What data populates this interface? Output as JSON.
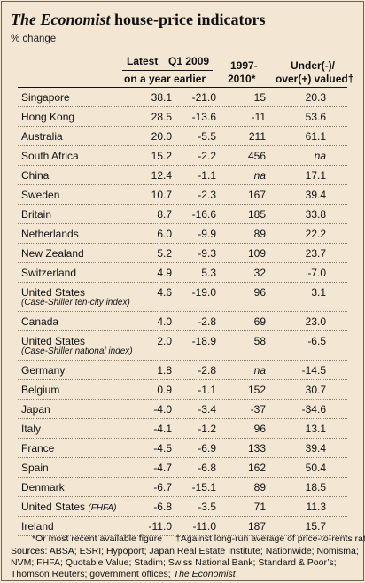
{
  "title_brand": "The Economist",
  "title_rest": " house-price indicators",
  "subtitle": "% change",
  "headers": {
    "latest": "Latest",
    "q1_2009": "Q1 2009",
    "on_year_earlier": "on a year earlier",
    "y1997_line1": "1997-",
    "y1997_line2": "2010*",
    "under_line1": "Under(-)/",
    "under_line2": "over(+) valued†"
  },
  "footnotes": {
    "note1": "*Or most recent available figure",
    "note2": "†Against long-run average of price-to-rents ratio",
    "sources1": "Sources: ABSA; ESRI; Hypoport; Japan Real Estate Institute; Nationwide; Nomisma;",
    "sources2": "NVM; FHFA; Quotable Value; Stadim; Swiss National Bank; Standard & Poor’s;",
    "sources3": "Thomson Reuters; government offices; ",
    "sources3_italic": "The Economist"
  },
  "chart_data": {
    "type": "table",
    "title": "The Economist house-price indicators",
    "subtitle": "% change",
    "columns": [
      "Latest",
      "Q1 2009",
      "1997-2010*",
      "Under(-)/over(+) valued†"
    ],
    "rows": [
      {
        "country": "Singapore",
        "latest": "38.1",
        "q1_2009": "-21.0",
        "y1997": "15",
        "valued": "20.3"
      },
      {
        "country": "Hong Kong",
        "latest": "28.5",
        "q1_2009": "-13.6",
        "y1997": "-11",
        "valued": "53.6"
      },
      {
        "country": "Australia",
        "latest": "20.0",
        "q1_2009": "-5.5",
        "y1997": "211",
        "valued": "61.1"
      },
      {
        "country": "South Africa",
        "latest": "15.2",
        "q1_2009": "-2.2",
        "y1997": "456",
        "valued": "na"
      },
      {
        "country": "China",
        "latest": "12.4",
        "q1_2009": "-1.1",
        "y1997": "na",
        "valued": "17.1"
      },
      {
        "country": "Sweden",
        "latest": "10.7",
        "q1_2009": "-2.3",
        "y1997": "167",
        "valued": "39.4"
      },
      {
        "country": "Britain",
        "latest": "8.7",
        "q1_2009": "-16.6",
        "y1997": "185",
        "valued": "33.8"
      },
      {
        "country": "Netherlands",
        "latest": "6.0",
        "q1_2009": "-9.9",
        "y1997": "89",
        "valued": "22.2"
      },
      {
        "country": "New Zealand",
        "latest": "5.2",
        "q1_2009": "-9.3",
        "y1997": "109",
        "valued": "23.7"
      },
      {
        "country": "Switzerland",
        "latest": "4.9",
        "q1_2009": "5.3",
        "y1997": "32",
        "valued": "-7.0"
      },
      {
        "country": "United States",
        "note": "(Case-Shiller ten-city index)",
        "latest": "4.6",
        "q1_2009": "-19.0",
        "y1997": "96",
        "valued": "3.1"
      },
      {
        "country": "Canada",
        "latest": "4.0",
        "q1_2009": "-2.8",
        "y1997": "69",
        "valued": "23.0"
      },
      {
        "country": "United States",
        "note": "(Case-Shiller national index)",
        "latest": "2.0",
        "q1_2009": "-18.9",
        "y1997": "58",
        "valued": "-6.5"
      },
      {
        "country": "Germany",
        "latest": "1.8",
        "q1_2009": "-2.8",
        "y1997": "na",
        "valued": "-14.5"
      },
      {
        "country": "Belgium",
        "latest": "0.9",
        "q1_2009": "-1.1",
        "y1997": "152",
        "valued": "30.7"
      },
      {
        "country": "Japan",
        "latest": "-4.0",
        "q1_2009": "-3.4",
        "y1997": "-37",
        "valued": "-34.6"
      },
      {
        "country": "Italy",
        "latest": "-4.1",
        "q1_2009": "-1.2",
        "y1997": "96",
        "valued": "13.1"
      },
      {
        "country": "France",
        "latest": "-4.5",
        "q1_2009": "-6.9",
        "y1997": "133",
        "valued": "39.4"
      },
      {
        "country": "Spain",
        "latest": "-4.7",
        "q1_2009": "-6.8",
        "y1997": "162",
        "valued": "50.4"
      },
      {
        "country": "Denmark",
        "latest": "-6.7",
        "q1_2009": "-15.1",
        "y1997": "89",
        "valued": "18.5"
      },
      {
        "country": "United States",
        "inline_note": "(FHFA)",
        "latest": "-6.8",
        "q1_2009": "-3.5",
        "y1997": "71",
        "valued": "11.3"
      },
      {
        "country": "Ireland",
        "latest": "-11.0",
        "q1_2009": "-11.0",
        "y1997": "187",
        "valued": "15.7"
      }
    ]
  }
}
